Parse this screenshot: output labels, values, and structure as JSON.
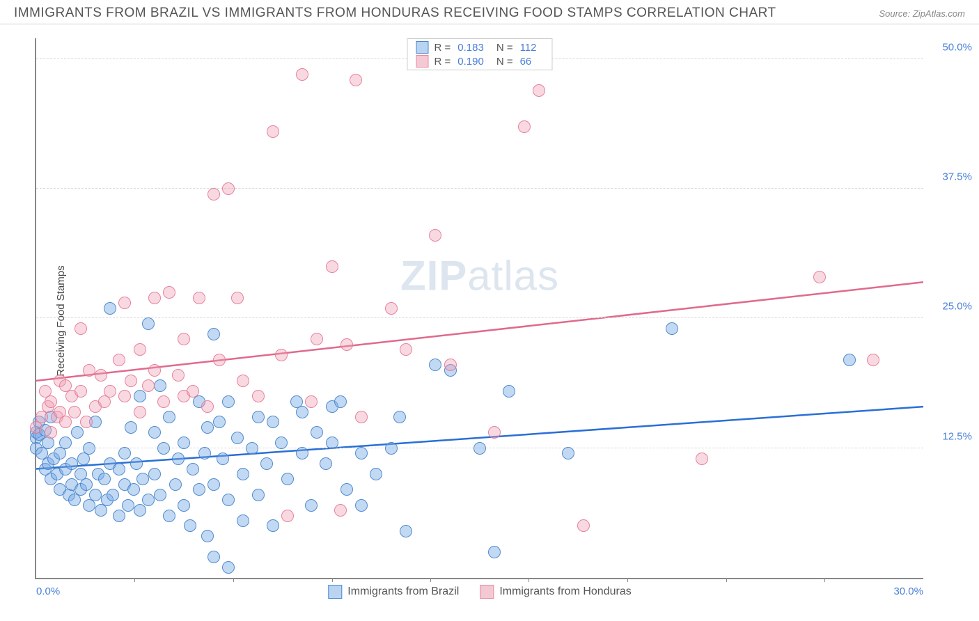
{
  "header": {
    "title": "IMMIGRANTS FROM BRAZIL VS IMMIGRANTS FROM HONDURAS RECEIVING FOOD STAMPS CORRELATION CHART",
    "source_prefix": "Source: ",
    "source": "ZipAtlas.com"
  },
  "chart": {
    "type": "scatter",
    "ylabel": "Receiving Food Stamps",
    "watermark_bold": "ZIP",
    "watermark_rest": "atlas",
    "xlim": [
      0,
      30
    ],
    "ylim": [
      0,
      52
    ],
    "x_ticks_minor": [
      3.33,
      6.66,
      10,
      13.33,
      16.66,
      20,
      23.33,
      26.66
    ],
    "x_tick_labels": [
      {
        "x": 0,
        "label": "0.0%",
        "align": "left"
      },
      {
        "x": 30,
        "label": "30.0%",
        "align": "right"
      }
    ],
    "y_grid": [
      {
        "y": 12.5,
        "label": "12.5%"
      },
      {
        "y": 25.0,
        "label": "25.0%"
      },
      {
        "y": 37.5,
        "label": "37.5%"
      },
      {
        "y": 50.0,
        "label": "50.0%"
      }
    ],
    "marker_radius": 9,
    "colors": {
      "blue_fill": "rgba(120,170,230,0.45)",
      "blue_stroke": "#4a86d0",
      "pink_fill": "rgba(240,160,180,0.4)",
      "pink_stroke": "#e88aa5",
      "axis": "#888888",
      "grid": "#d8d8d8",
      "tick_text": "#4a7fd8",
      "text": "#555555"
    },
    "legend_top": [
      {
        "swatch_fill": "#b8d4f0",
        "swatch_stroke": "#4a86d0",
        "r_label": "R  =",
        "r_val": "0.183",
        "n_label": "N  =",
        "n_val": "112"
      },
      {
        "swatch_fill": "#f5c9d4",
        "swatch_stroke": "#e88aa5",
        "r_label": "R  =",
        "r_val": "0.190",
        "n_label": "N  =",
        "n_val": "66"
      }
    ],
    "legend_bottom": [
      {
        "swatch_fill": "#b8d4f0",
        "swatch_stroke": "#4a86d0",
        "label": "Immigrants from Brazil"
      },
      {
        "swatch_fill": "#f5c9d4",
        "swatch_stroke": "#e88aa5",
        "label": "Immigrants from Honduras"
      }
    ],
    "trend_lines": [
      {
        "color": "#2a6fd6",
        "width": 2.5,
        "x1": 0,
        "y1": 10.5,
        "x2": 30,
        "y2": 16.5
      },
      {
        "color": "#e06a8c",
        "width": 2.5,
        "x1": 0,
        "y1": 19.0,
        "x2": 30,
        "y2": 28.5
      }
    ],
    "series": [
      {
        "name": "brazil",
        "class": "blue",
        "points": [
          [
            0.0,
            13.5
          ],
          [
            0.0,
            12.5
          ],
          [
            0.0,
            14.0
          ],
          [
            0.1,
            15.0
          ],
          [
            0.1,
            13.8
          ],
          [
            0.2,
            12.0
          ],
          [
            0.3,
            14.2
          ],
          [
            0.3,
            10.5
          ],
          [
            0.4,
            11.0
          ],
          [
            0.4,
            13.0
          ],
          [
            0.5,
            15.5
          ],
          [
            0.5,
            9.5
          ],
          [
            0.6,
            11.5
          ],
          [
            0.7,
            10.0
          ],
          [
            0.8,
            8.5
          ],
          [
            0.8,
            12.0
          ],
          [
            1.0,
            10.5
          ],
          [
            1.0,
            13.0
          ],
          [
            1.1,
            8.0
          ],
          [
            1.2,
            11.0
          ],
          [
            1.2,
            9.0
          ],
          [
            1.3,
            7.5
          ],
          [
            1.4,
            14.0
          ],
          [
            1.5,
            8.5
          ],
          [
            1.5,
            10.0
          ],
          [
            1.6,
            11.5
          ],
          [
            1.7,
            9.0
          ],
          [
            1.8,
            7.0
          ],
          [
            1.8,
            12.5
          ],
          [
            2.0,
            8.0
          ],
          [
            2.0,
            15.0
          ],
          [
            2.1,
            10.0
          ],
          [
            2.2,
            6.5
          ],
          [
            2.3,
            9.5
          ],
          [
            2.4,
            7.5
          ],
          [
            2.5,
            11.0
          ],
          [
            2.5,
            26.0
          ],
          [
            2.6,
            8.0
          ],
          [
            2.8,
            10.5
          ],
          [
            2.8,
            6.0
          ],
          [
            3.0,
            12.0
          ],
          [
            3.0,
            9.0
          ],
          [
            3.1,
            7.0
          ],
          [
            3.2,
            14.5
          ],
          [
            3.3,
            8.5
          ],
          [
            3.4,
            11.0
          ],
          [
            3.5,
            6.5
          ],
          [
            3.5,
            17.5
          ],
          [
            3.6,
            9.5
          ],
          [
            3.8,
            7.5
          ],
          [
            3.8,
            24.5
          ],
          [
            4.0,
            14.0
          ],
          [
            4.0,
            10.0
          ],
          [
            4.2,
            8.0
          ],
          [
            4.2,
            18.5
          ],
          [
            4.3,
            12.5
          ],
          [
            4.5,
            6.0
          ],
          [
            4.5,
            15.5
          ],
          [
            4.7,
            9.0
          ],
          [
            4.8,
            11.5
          ],
          [
            5.0,
            7.0
          ],
          [
            5.0,
            13.0
          ],
          [
            5.2,
            5.0
          ],
          [
            5.3,
            10.5
          ],
          [
            5.5,
            17.0
          ],
          [
            5.5,
            8.5
          ],
          [
            5.7,
            12.0
          ],
          [
            5.8,
            14.5
          ],
          [
            5.8,
            4.0
          ],
          [
            6.0,
            23.5
          ],
          [
            6.0,
            9.0
          ],
          [
            6.0,
            2.0
          ],
          [
            6.2,
            15.0
          ],
          [
            6.3,
            11.5
          ],
          [
            6.5,
            7.5
          ],
          [
            6.5,
            17.0
          ],
          [
            6.5,
            1.0
          ],
          [
            6.8,
            13.5
          ],
          [
            7.0,
            10.0
          ],
          [
            7.0,
            5.5
          ],
          [
            7.3,
            12.5
          ],
          [
            7.5,
            15.5
          ],
          [
            7.5,
            8.0
          ],
          [
            7.8,
            11.0
          ],
          [
            8.0,
            15.0
          ],
          [
            8.0,
            5.0
          ],
          [
            8.3,
            13.0
          ],
          [
            8.5,
            9.5
          ],
          [
            8.8,
            17.0
          ],
          [
            9.0,
            12.0
          ],
          [
            9.0,
            16.0
          ],
          [
            9.3,
            7.0
          ],
          [
            9.5,
            14.0
          ],
          [
            9.8,
            11.0
          ],
          [
            10.0,
            16.5
          ],
          [
            10.0,
            13.0
          ],
          [
            10.3,
            17.0
          ],
          [
            10.5,
            8.5
          ],
          [
            11.0,
            12.0
          ],
          [
            11.0,
            7.0
          ],
          [
            11.5,
            10.0
          ],
          [
            12.0,
            12.5
          ],
          [
            12.3,
            15.5
          ],
          [
            12.5,
            4.5
          ],
          [
            13.5,
            20.5
          ],
          [
            14.0,
            20.0
          ],
          [
            15.0,
            12.5
          ],
          [
            15.5,
            2.5
          ],
          [
            16.0,
            18.0
          ],
          [
            18.0,
            12.0
          ],
          [
            21.5,
            24.0
          ],
          [
            27.5,
            21.0
          ]
        ]
      },
      {
        "name": "honduras",
        "class": "pink",
        "points": [
          [
            0.0,
            14.5
          ],
          [
            0.2,
            15.5
          ],
          [
            0.3,
            18.0
          ],
          [
            0.4,
            16.5
          ],
          [
            0.5,
            17.0
          ],
          [
            0.5,
            14.0
          ],
          [
            0.7,
            15.5
          ],
          [
            0.8,
            19.0
          ],
          [
            0.8,
            16.0
          ],
          [
            1.0,
            18.5
          ],
          [
            1.0,
            15.0
          ],
          [
            1.2,
            17.5
          ],
          [
            1.3,
            16.0
          ],
          [
            1.5,
            24.0
          ],
          [
            1.5,
            18.0
          ],
          [
            1.7,
            15.0
          ],
          [
            1.8,
            20.0
          ],
          [
            2.0,
            16.5
          ],
          [
            2.2,
            19.5
          ],
          [
            2.3,
            17.0
          ],
          [
            2.5,
            18.0
          ],
          [
            2.8,
            21.0
          ],
          [
            3.0,
            17.5
          ],
          [
            3.0,
            26.5
          ],
          [
            3.2,
            19.0
          ],
          [
            3.5,
            22.0
          ],
          [
            3.5,
            16.0
          ],
          [
            3.8,
            18.5
          ],
          [
            4.0,
            27.0
          ],
          [
            4.0,
            20.0
          ],
          [
            4.3,
            17.0
          ],
          [
            4.5,
            27.5
          ],
          [
            4.8,
            19.5
          ],
          [
            5.0,
            17.5
          ],
          [
            5.0,
            23.0
          ],
          [
            5.3,
            18.0
          ],
          [
            5.5,
            27.0
          ],
          [
            5.8,
            16.5
          ],
          [
            6.0,
            37.0
          ],
          [
            6.2,
            21.0
          ],
          [
            6.5,
            37.5
          ],
          [
            6.8,
            27.0
          ],
          [
            7.0,
            19.0
          ],
          [
            7.5,
            17.5
          ],
          [
            8.0,
            43.0
          ],
          [
            8.3,
            21.5
          ],
          [
            8.5,
            6.0
          ],
          [
            9.0,
            48.5
          ],
          [
            9.3,
            17.0
          ],
          [
            9.5,
            23.0
          ],
          [
            10.0,
            30.0
          ],
          [
            10.3,
            6.5
          ],
          [
            10.5,
            22.5
          ],
          [
            10.8,
            48.0
          ],
          [
            11.0,
            15.5
          ],
          [
            12.0,
            26.0
          ],
          [
            12.5,
            22.0
          ],
          [
            13.5,
            33.0
          ],
          [
            14.0,
            20.5
          ],
          [
            15.5,
            14.0
          ],
          [
            16.5,
            43.5
          ],
          [
            17.0,
            47.0
          ],
          [
            18.5,
            5.0
          ],
          [
            22.5,
            11.5
          ],
          [
            26.5,
            29.0
          ],
          [
            28.3,
            21.0
          ]
        ]
      }
    ]
  }
}
